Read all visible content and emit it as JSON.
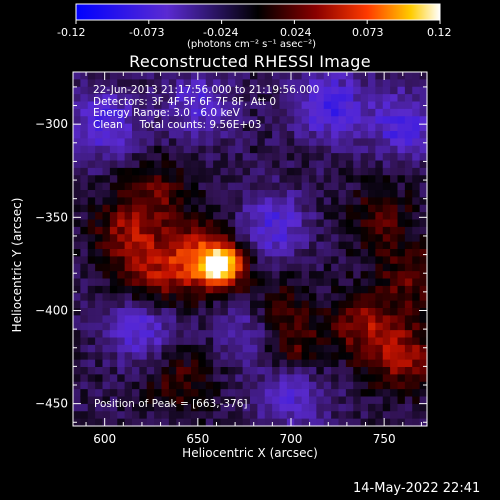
{
  "colorbar": {
    "ticks": [
      "-0.12",
      "-0.073",
      "-0.024",
      "0.024",
      "0.073",
      "0.12"
    ],
    "unit_label": "(photons cm⁻² s⁻¹ asec⁻²)",
    "min": -0.12,
    "max": 0.12
  },
  "chart_data": {
    "type": "heatmap",
    "title": "Reconstructed RHESSI Image",
    "xlabel": "Heliocentric X (arcsec)",
    "ylabel": "Heliocentric Y (arcsec)",
    "xlim": [
      583,
      773
    ],
    "ylim": [
      -462,
      -272
    ],
    "xticks": [
      600,
      650,
      700,
      750
    ],
    "yticks": [
      -300,
      -350,
      -400,
      -450
    ],
    "xtick_labels": [
      "600",
      "650",
      "700",
      "750"
    ],
    "ytick_labels": [
      "−300",
      "−350",
      "−400",
      "−450"
    ],
    "annotations": [
      "22-Jun-2013 21:17:56.000 to 21:19:56.000",
      "Detectors: 3F 4F 5F 6F 7F 8F, Att 0",
      "Energy Range: 3.0 - 6.0 keV",
      "Clean     Total counts: 9.56E+03"
    ],
    "peak_label": "Position of Peak = [663,-376]",
    "peak": {
      "x": 663,
      "y": -376,
      "value": 0.12
    },
    "sources": [
      {
        "x": 663,
        "y": -376,
        "value": 0.12
      },
      {
        "x": 650,
        "y": -372,
        "value": 0.075
      },
      {
        "x": 612,
        "y": -358,
        "value": 0.05
      },
      {
        "x": 625,
        "y": -382,
        "value": 0.048
      },
      {
        "x": 628,
        "y": -336,
        "value": 0.038
      },
      {
        "x": 700,
        "y": -420,
        "value": 0.045
      },
      {
        "x": 740,
        "y": -408,
        "value": 0.05
      },
      {
        "x": 760,
        "y": -425,
        "value": 0.055
      },
      {
        "x": 765,
        "y": -382,
        "value": 0.04
      },
      {
        "x": 748,
        "y": -350,
        "value": 0.035
      },
      {
        "x": 690,
        "y": -398,
        "value": 0.035
      },
      {
        "x": 640,
        "y": -438,
        "value": 0.035
      },
      {
        "x": 690,
        "y": -355,
        "value": -0.05
      },
      {
        "x": 720,
        "y": -290,
        "value": -0.06
      },
      {
        "x": 760,
        "y": -300,
        "value": -0.055
      },
      {
        "x": 600,
        "y": -300,
        "value": -0.055
      },
      {
        "x": 650,
        "y": -290,
        "value": -0.045
      },
      {
        "x": 620,
        "y": -410,
        "value": -0.05
      },
      {
        "x": 680,
        "y": -410,
        "value": -0.045
      },
      {
        "x": 700,
        "y": -445,
        "value": -0.05
      }
    ]
  },
  "footer": {
    "timestamp": "14-May-2022 22:41"
  },
  "colors": {
    "background": "#000000",
    "text": "#ffffff"
  }
}
